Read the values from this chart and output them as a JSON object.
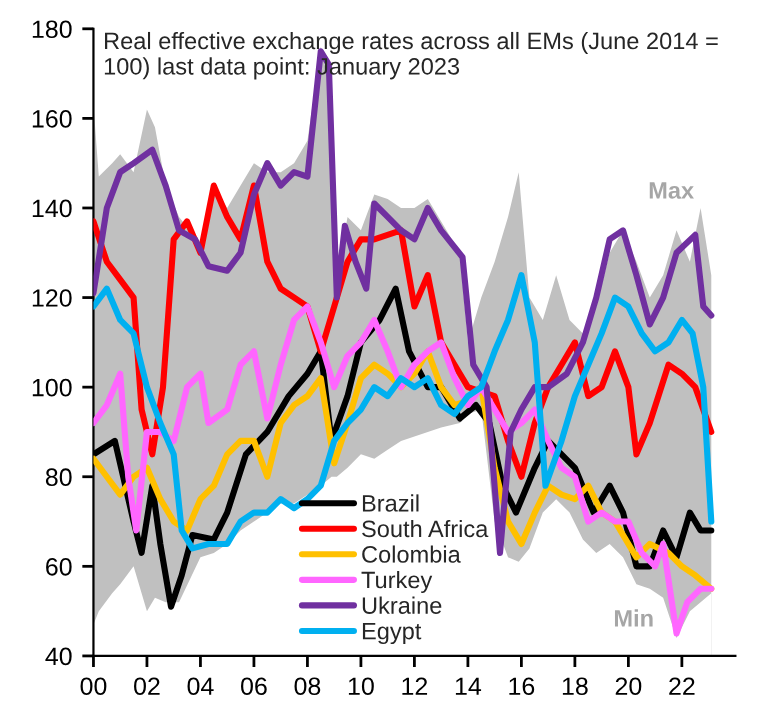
{
  "chart_data": {
    "type": "line",
    "title": "Real effective exchange rates across all EMs (June 2014 = 100) last data point: January 2023",
    "xlim": [
      2000,
      2024
    ],
    "ylim": [
      40,
      180
    ],
    "xticks": [
      {
        "value": 2000,
        "label": "00"
      },
      {
        "value": 2002,
        "label": "02"
      },
      {
        "value": 2004,
        "label": "04"
      },
      {
        "value": 2006,
        "label": "06"
      },
      {
        "value": 2008,
        "label": "08"
      },
      {
        "value": 2010,
        "label": "10"
      },
      {
        "value": 2012,
        "label": "12"
      },
      {
        "value": 2014,
        "label": "14"
      },
      {
        "value": 2016,
        "label": "16"
      },
      {
        "value": 2018,
        "label": "18"
      },
      {
        "value": 2020,
        "label": "20"
      },
      {
        "value": 2022,
        "label": "22"
      }
    ],
    "yticks": [
      40,
      60,
      80,
      100,
      120,
      140,
      160,
      180
    ],
    "grid": false,
    "legend": "bottom",
    "series": [
      {
        "name": "Max",
        "type": "area",
        "color": "#c0c0c0",
        "x": [
          2000,
          2000.2,
          2000.7,
          2001,
          2001.5,
          2002,
          2002.3,
          2002.7,
          2003.2,
          2004,
          2004.5,
          2005,
          2005.5,
          2006,
          2006.5,
          2007,
          2007.5,
          2008,
          2008.5,
          2008.9,
          2009.1,
          2009.5,
          2010,
          2010.5,
          2011,
          2011.5,
          2012,
          2012.5,
          2013,
          2013.7,
          2014,
          2014.5,
          2015,
          2015.5,
          2015.9,
          2016.3,
          2016.8,
          2017.3,
          2017.8,
          2018.3,
          2018.8,
          2019.3,
          2019.8,
          2020.3,
          2020.8,
          2021.3,
          2021.8,
          2022.3,
          2022.7,
          2023.1
        ],
        "values": [
          163,
          147,
          150,
          152,
          148,
          162,
          158,
          145,
          138,
          132,
          145,
          140,
          145,
          150,
          148,
          148,
          150,
          155,
          176,
          165,
          125,
          138,
          135,
          143,
          142,
          140,
          140,
          142,
          137,
          130,
          110,
          120,
          128,
          138,
          148,
          120,
          115,
          125,
          115,
          112,
          118,
          130,
          135,
          128,
          120,
          125,
          135,
          128,
          140,
          125
        ]
      },
      {
        "name": "Min",
        "type": "area",
        "color": "#ffffff",
        "x": [
          2000,
          2000.2,
          2000.7,
          2001,
          2001.5,
          2002,
          2002.3,
          2002.7,
          2003.2,
          2004,
          2004.5,
          2005,
          2005.5,
          2006,
          2006.5,
          2007,
          2007.5,
          2008,
          2008.5,
          2008.9,
          2009.1,
          2009.5,
          2010,
          2010.5,
          2011,
          2011.5,
          2012,
          2012.5,
          2013,
          2013.7,
          2014,
          2014.5,
          2015,
          2015.5,
          2015.9,
          2016.3,
          2016.8,
          2017.3,
          2017.8,
          2018.3,
          2018.8,
          2019.3,
          2019.8,
          2020.3,
          2020.8,
          2021.3,
          2021.8,
          2022.3,
          2022.7,
          2023.1
        ],
        "values": [
          47,
          50,
          54,
          56,
          60,
          50,
          53,
          52,
          52,
          62,
          63,
          65,
          68,
          70,
          72,
          74,
          74,
          76,
          78,
          80,
          80,
          82,
          85,
          84,
          86,
          88,
          89,
          90,
          91,
          92,
          94,
          95,
          70,
          62,
          61,
          64,
          72,
          75,
          72,
          66,
          63,
          65,
          62,
          56,
          55,
          53,
          44,
          50,
          52,
          54
        ]
      },
      {
        "name": "Brazil",
        "color": "#000000",
        "x": [
          2000,
          2000.8,
          2001.5,
          2001.8,
          2002.2,
          2002.5,
          2002.9,
          2003.3,
          2003.7,
          2004.5,
          2005,
          2005.7,
          2006.5,
          2007.3,
          2008,
          2008.5,
          2008.9,
          2009.5,
          2010,
          2010.7,
          2011.3,
          2011.8,
          2012.5,
          2013,
          2013.7,
          2014.3,
          2014.8,
          2015.3,
          2015.8,
          2016.5,
          2017,
          2017.5,
          2018,
          2018.7,
          2019.3,
          2019.8,
          2020.3,
          2020.8,
          2021.3,
          2021.8,
          2022.3,
          2022.7,
          2023.1
        ],
        "values": [
          85,
          88,
          70,
          63,
          78,
          65,
          51,
          58,
          67,
          66,
          72,
          85,
          90,
          98,
          103,
          108,
          88,
          98,
          110,
          115,
          122,
          108,
          100,
          100,
          93,
          96,
          92,
          78,
          72,
          82,
          88,
          85,
          82,
          72,
          78,
          72,
          60,
          60,
          68,
          62,
          72,
          68,
          68
        ]
      },
      {
        "name": "South Africa",
        "color": "#ff0000",
        "x": [
          2000,
          2000.5,
          2001,
          2001.5,
          2001.8,
          2002.2,
          2002.6,
          2003,
          2003.5,
          2004,
          2004.5,
          2005,
          2005.5,
          2006,
          2006.5,
          2007,
          2007.5,
          2008,
          2008.5,
          2009,
          2009.5,
          2010,
          2010.5,
          2011.5,
          2012,
          2012.5,
          2013,
          2013.5,
          2014,
          2015,
          2015.5,
          2016,
          2016.5,
          2017,
          2017.5,
          2018,
          2018.5,
          2019,
          2019.5,
          2020,
          2020.3,
          2020.8,
          2021.5,
          2022,
          2022.5,
          2023.1
        ],
        "values": [
          137,
          128,
          124,
          120,
          95,
          85,
          100,
          133,
          137,
          130,
          145,
          138,
          133,
          145,
          128,
          122,
          120,
          118,
          108,
          118,
          128,
          133,
          133,
          135,
          118,
          125,
          110,
          105,
          100,
          98,
          88,
          80,
          92,
          100,
          105,
          110,
          98,
          100,
          108,
          100,
          85,
          92,
          105,
          103,
          100,
          90
        ]
      },
      {
        "name": "Colombia",
        "color": "#ffc000",
        "x": [
          2000,
          2000.5,
          2001,
          2001.5,
          2002,
          2002.5,
          2003,
          2003.5,
          2004,
          2004.5,
          2005,
          2005.5,
          2006,
          2006.5,
          2007,
          2007.5,
          2008,
          2008.5,
          2009,
          2009.5,
          2010,
          2010.5,
          2011,
          2011.5,
          2012,
          2012.5,
          2013,
          2013.5,
          2014,
          2014.5,
          2015,
          2015.5,
          2016,
          2016.5,
          2017,
          2017.5,
          2018,
          2018.5,
          2019,
          2019.5,
          2020.3,
          2020.8,
          2021.5,
          2022,
          2022.5,
          2023.1
        ],
        "values": [
          84,
          80,
          76,
          80,
          82,
          75,
          70,
          68,
          75,
          78,
          85,
          88,
          88,
          80,
          92,
          96,
          98,
          102,
          83,
          92,
          102,
          105,
          103,
          100,
          103,
          108,
          100,
          96,
          97,
          100,
          82,
          70,
          65,
          72,
          78,
          76,
          75,
          78,
          72,
          70,
          62,
          65,
          63,
          60,
          58,
          55
        ]
      },
      {
        "name": "Turkey",
        "color": "#ff66ff",
        "x": [
          2000,
          2000.5,
          2001,
          2001.3,
          2001.6,
          2002,
          2002.5,
          2003,
          2003.5,
          2004,
          2004.3,
          2005,
          2005.5,
          2006,
          2006.5,
          2007,
          2007.5,
          2008,
          2008.5,
          2009,
          2009.5,
          2010,
          2010.5,
          2011,
          2011.5,
          2012,
          2012.5,
          2013,
          2013.5,
          2014,
          2014.5,
          2015,
          2015.5,
          2016,
          2016.5,
          2017,
          2017.5,
          2018,
          2018.5,
          2019,
          2019.5,
          2020,
          2020.5,
          2021,
          2021.3,
          2021.8,
          2022.2,
          2022.7,
          2023.1
        ],
        "values": [
          92,
          96,
          103,
          80,
          68,
          90,
          90,
          88,
          100,
          103,
          92,
          95,
          105,
          108,
          93,
          105,
          115,
          118,
          110,
          100,
          107,
          110,
          115,
          108,
          100,
          105,
          108,
          110,
          102,
          96,
          100,
          95,
          90,
          92,
          95,
          88,
          82,
          80,
          70,
          72,
          70,
          70,
          63,
          60,
          65,
          45,
          52,
          55,
          55
        ]
      },
      {
        "name": "Ukraine",
        "color": "#7030a0",
        "x": [
          2000,
          2000.5,
          2001,
          2001.5,
          2002.2,
          2002.7,
          2003.2,
          2003.8,
          2004.3,
          2005,
          2005.5,
          2006,
          2006.5,
          2007,
          2007.5,
          2008,
          2008.5,
          2008.8,
          2009.1,
          2009.4,
          2009.8,
          2010.2,
          2010.5,
          2011,
          2011.5,
          2012,
          2012.5,
          2013,
          2013.8,
          2014.2,
          2014.7,
          2015.2,
          2015.6,
          2016,
          2016.5,
          2017,
          2017.7,
          2018.3,
          2018.8,
          2019.3,
          2019.8,
          2020.3,
          2020.8,
          2021.3,
          2021.8,
          2022.5,
          2022.8,
          2023.1
        ],
        "values": [
          121,
          140,
          148,
          150,
          153,
          145,
          135,
          133,
          127,
          126,
          130,
          143,
          150,
          145,
          148,
          147,
          175,
          172,
          120,
          136,
          128,
          122,
          141,
          138,
          135,
          133,
          140,
          135,
          129,
          105,
          100,
          63,
          90,
          95,
          100,
          100,
          103,
          110,
          120,
          133,
          135,
          125,
          114,
          120,
          130,
          134,
          118,
          116
        ]
      },
      {
        "name": "Egypt",
        "color": "#00b0f0",
        "x": [
          2000,
          2000.5,
          2001,
          2001.5,
          2002,
          2002.5,
          2003,
          2003.3,
          2003.7,
          2004.3,
          2005,
          2005.5,
          2006,
          2006.5,
          2007,
          2007.5,
          2008,
          2008.5,
          2009,
          2009.5,
          2010,
          2010.5,
          2011,
          2011.5,
          2012,
          2012.5,
          2013,
          2013.5,
          2014,
          2014.5,
          2015,
          2015.5,
          2016,
          2016.5,
          2016.9,
          2017.5,
          2018,
          2018.5,
          2019,
          2019.5,
          2020,
          2020.5,
          2021,
          2021.5,
          2022,
          2022.4,
          2022.8,
          2023.1
        ],
        "values": [
          118,
          122,
          115,
          112,
          100,
          92,
          85,
          68,
          64,
          65,
          65,
          70,
          72,
          72,
          75,
          73,
          75,
          78,
          88,
          92,
          95,
          100,
          98,
          102,
          100,
          102,
          96,
          94,
          98,
          100,
          108,
          115,
          125,
          110,
          78,
          88,
          98,
          105,
          112,
          120,
          118,
          112,
          108,
          110,
          115,
          112,
          100,
          70
        ]
      }
    ]
  }
}
